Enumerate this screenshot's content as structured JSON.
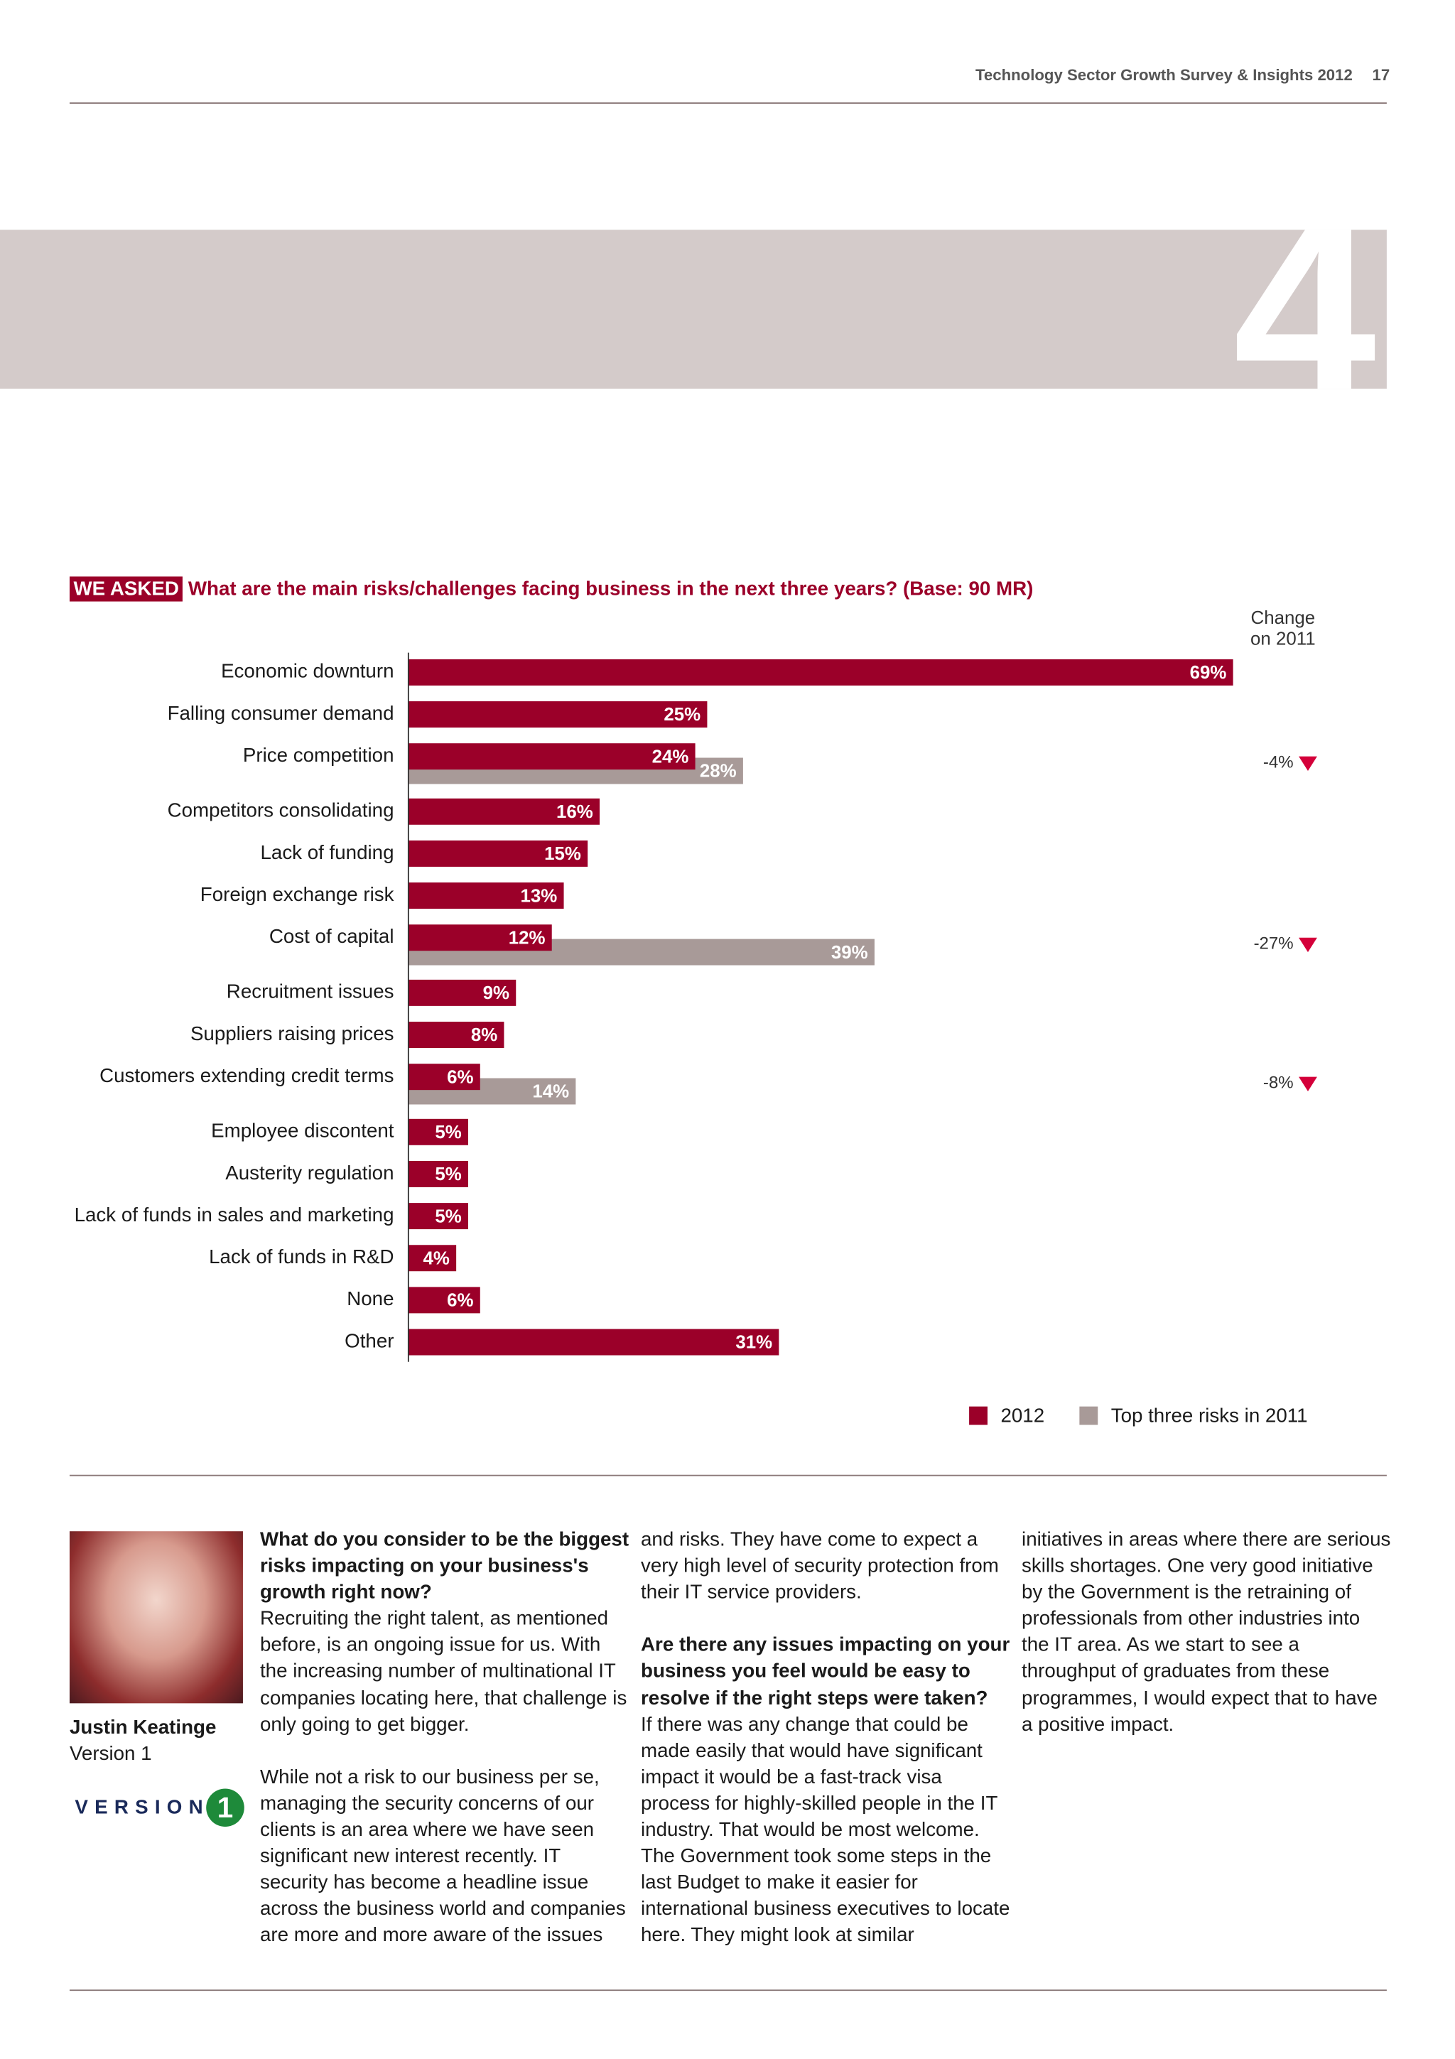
{
  "header": {
    "title": "Technology Sector Growth Survey & Insights 2012",
    "page": "17"
  },
  "section": {
    "number": "4"
  },
  "question": {
    "tag": "WE ASKED",
    "text": "What are the main risks/challenges facing business in the next three years? (Base: 90 MR)"
  },
  "chart_data": {
    "type": "bar",
    "orientation": "horizontal",
    "categories": [
      "Economic downturn",
      "Falling consumer demand",
      "Price competition",
      "Competitors consolidating",
      "Lack of funding",
      "Foreign exchange risk",
      "Cost of capital",
      "Recruitment issues",
      "Suppliers raising prices",
      "Customers extending credit terms",
      "Employee discontent",
      "Austerity regulation",
      "Lack of funds in sales and marketing",
      "Lack of funds in R&D",
      "None",
      "Other"
    ],
    "series": [
      {
        "name": "2012",
        "color": "#9b0029",
        "values": [
          69,
          25,
          24,
          16,
          15,
          13,
          12,
          9,
          8,
          6,
          5,
          5,
          5,
          4,
          6,
          31
        ],
        "value_labels": [
          "69%",
          "25%",
          "24%",
          "16%",
          "15%",
          "13%",
          "12%",
          "9%",
          "8%",
          "6%",
          "5%",
          "5%",
          "5%",
          "4%",
          "6%",
          "31%"
        ]
      },
      {
        "name": "Top three risks in 2011",
        "color": "#a89a98",
        "values": [
          null,
          null,
          28,
          null,
          null,
          null,
          39,
          null,
          null,
          14,
          null,
          null,
          null,
          null,
          null,
          null
        ],
        "value_labels": [
          null,
          null,
          "28%",
          null,
          null,
          null,
          "39%",
          null,
          null,
          "14%",
          null,
          null,
          null,
          null,
          null,
          null
        ]
      }
    ],
    "change": {
      "title": "Change on 2011",
      "values": [
        null,
        null,
        -4,
        null,
        null,
        null,
        -27,
        null,
        null,
        -8,
        null,
        null,
        null,
        null,
        null,
        null
      ],
      "value_labels": [
        null,
        null,
        "-4%",
        null,
        null,
        null,
        "-27%",
        null,
        null,
        "-8%",
        null,
        null,
        null,
        null,
        null,
        null
      ],
      "color": "#d4003a"
    },
    "legend": "bottom-right"
  },
  "interview": {
    "name": "Justin Keatinge",
    "company": "Version 1",
    "logo": {
      "text": "VERSION",
      "number": "1"
    },
    "columns": [
      [
        {
          "heading": "What do you consider to be the biggest risks impacting on your business's growth right now?",
          "text": "Recruiting the right talent, as mentioned before, is an ongoing issue for us. With the increasing number of multinational IT companies locating here, that challenge is only going to get bigger."
        },
        {
          "text": "While not a risk to our business per se, managing the security concerns of our clients is an area where we have seen significant new interest recently. IT security has become a headline issue across the business world and companies are more and more aware of the issues"
        }
      ],
      [
        {
          "text": "and risks. They have come to expect a very high level of security protection from their IT service providers."
        },
        {
          "heading": "Are there any issues impacting on your business you feel would be easy to resolve if the right steps were taken?",
          "text": "If there was any change that could be made easily that would have significant impact it would be a fast-track visa process for highly-skilled people in the IT industry. That would be most welcome. The Government took some steps in the last Budget to make it easier for international business executives to locate here. They might look at similar"
        }
      ],
      [
        {
          "text": "initiatives in areas where there are serious skills shortages. One very good initiative by the Government is the retraining of professionals from other industries into the IT area. As we start to see a throughput of graduates from these programmes, I would expect that to have a positive impact."
        }
      ]
    ]
  }
}
